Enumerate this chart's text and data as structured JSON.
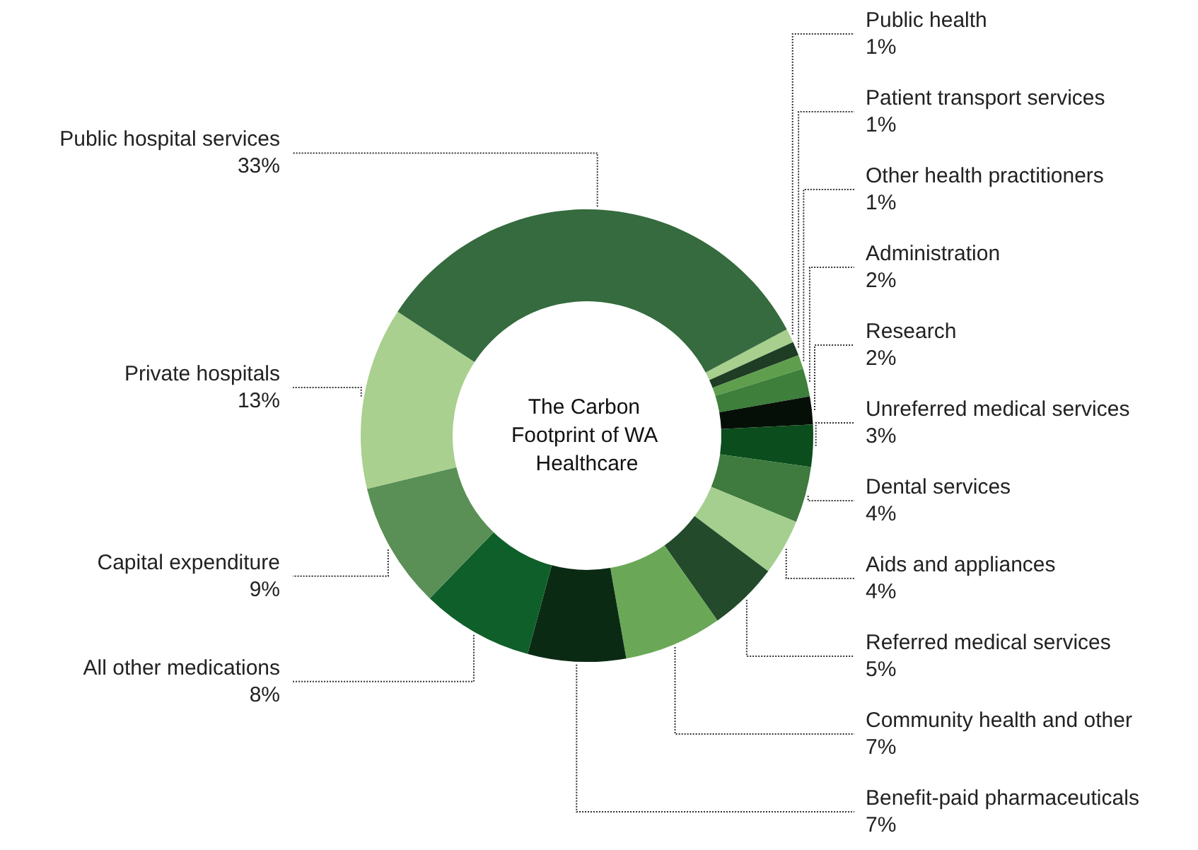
{
  "chart_data": {
    "type": "donut",
    "title": "The Carbon Footprint of WA Healthcare",
    "categories": [
      "Public health",
      "Patient transport services",
      "Other health practitioners",
      "Administration",
      "Research",
      "Unreferred medical services",
      "Dental services",
      "Aids and appliances",
      "Referred medical services",
      "Community health and other",
      "Benefit-paid pharmaceuticals",
      "All other medications",
      "Capital expenditure",
      "Private hospitals",
      "Public hospital services"
    ],
    "values": [
      1,
      1,
      1,
      2,
      2,
      3,
      4,
      4,
      5,
      7,
      7,
      8,
      9,
      13,
      33
    ],
    "value_labels": [
      "1%",
      "1%",
      "1%",
      "2%",
      "2%",
      "3%",
      "4%",
      "4%",
      "5%",
      "7%",
      "7%",
      "8%",
      "9%",
      "13%",
      "33%"
    ],
    "colors": [
      "#a8cf8e",
      "#1e3d24",
      "#5e9e4c",
      "#3d7f3b",
      "#050f07",
      "#0b4d1c",
      "#3f7a3e",
      "#a5cf8f",
      "#234a2a",
      "#6aa857",
      "#0b2a14",
      "#0f5f2a",
      "#5a8f55",
      "#a9d08e",
      "#356b3e"
    ],
    "legend": false
  }
}
